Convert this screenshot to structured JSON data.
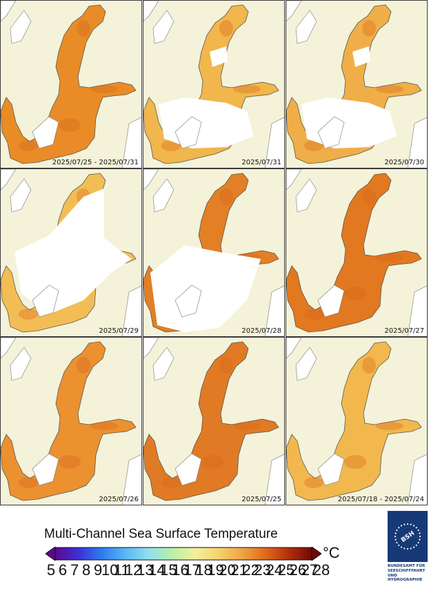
{
  "panels": [
    {
      "date": "2025/07/25 - 2025/07/31",
      "fill": "#e98c27",
      "coverage": "full"
    },
    {
      "date": "2025/07/31",
      "fill": "#f1b64c",
      "coverage": "partial"
    },
    {
      "date": "2025/07/30",
      "fill": "#f0ae48",
      "coverage": "partial"
    },
    {
      "date": "2025/07/29",
      "fill": "#f3bd55",
      "coverage": "sparse"
    },
    {
      "date": "2025/07/28",
      "fill": "#e37f25",
      "coverage": "north"
    },
    {
      "date": "2025/07/27",
      "fill": "#e2781f",
      "coverage": "full"
    },
    {
      "date": "2025/07/26",
      "fill": "#eb9130",
      "coverage": "full"
    },
    {
      "date": "2025/07/25",
      "fill": "#e17a24",
      "coverage": "full"
    },
    {
      "date": "2025/07/18 - 2025/07/24",
      "fill": "#f2b84e",
      "coverage": "full"
    }
  ],
  "legend": {
    "title": "Multi-Channel Sea Surface Temperature",
    "unit": "°C",
    "ticks": [
      "5",
      "6",
      "7",
      "8",
      "9",
      "10",
      "11",
      "12",
      "13",
      "14",
      "15",
      "16",
      "17",
      "18",
      "19",
      "20",
      "21",
      "22",
      "23",
      "24",
      "25",
      "26",
      "27",
      "28"
    ],
    "colors": [
      "#5a0a8c",
      "#3d2fd6",
      "#2e7cf0",
      "#59b6f4",
      "#8fe0ee",
      "#b8f0a8",
      "#f3f09a",
      "#f5d36e",
      "#f0a543",
      "#e06a1c",
      "#b3300c",
      "#6e0a06"
    ]
  },
  "logo": {
    "badge": "BSH",
    "lines": [
      "BUNDESAMT FÜR",
      "SEESCHIFFFAHRT",
      "UND",
      "HYDROGRAPHIE"
    ]
  }
}
